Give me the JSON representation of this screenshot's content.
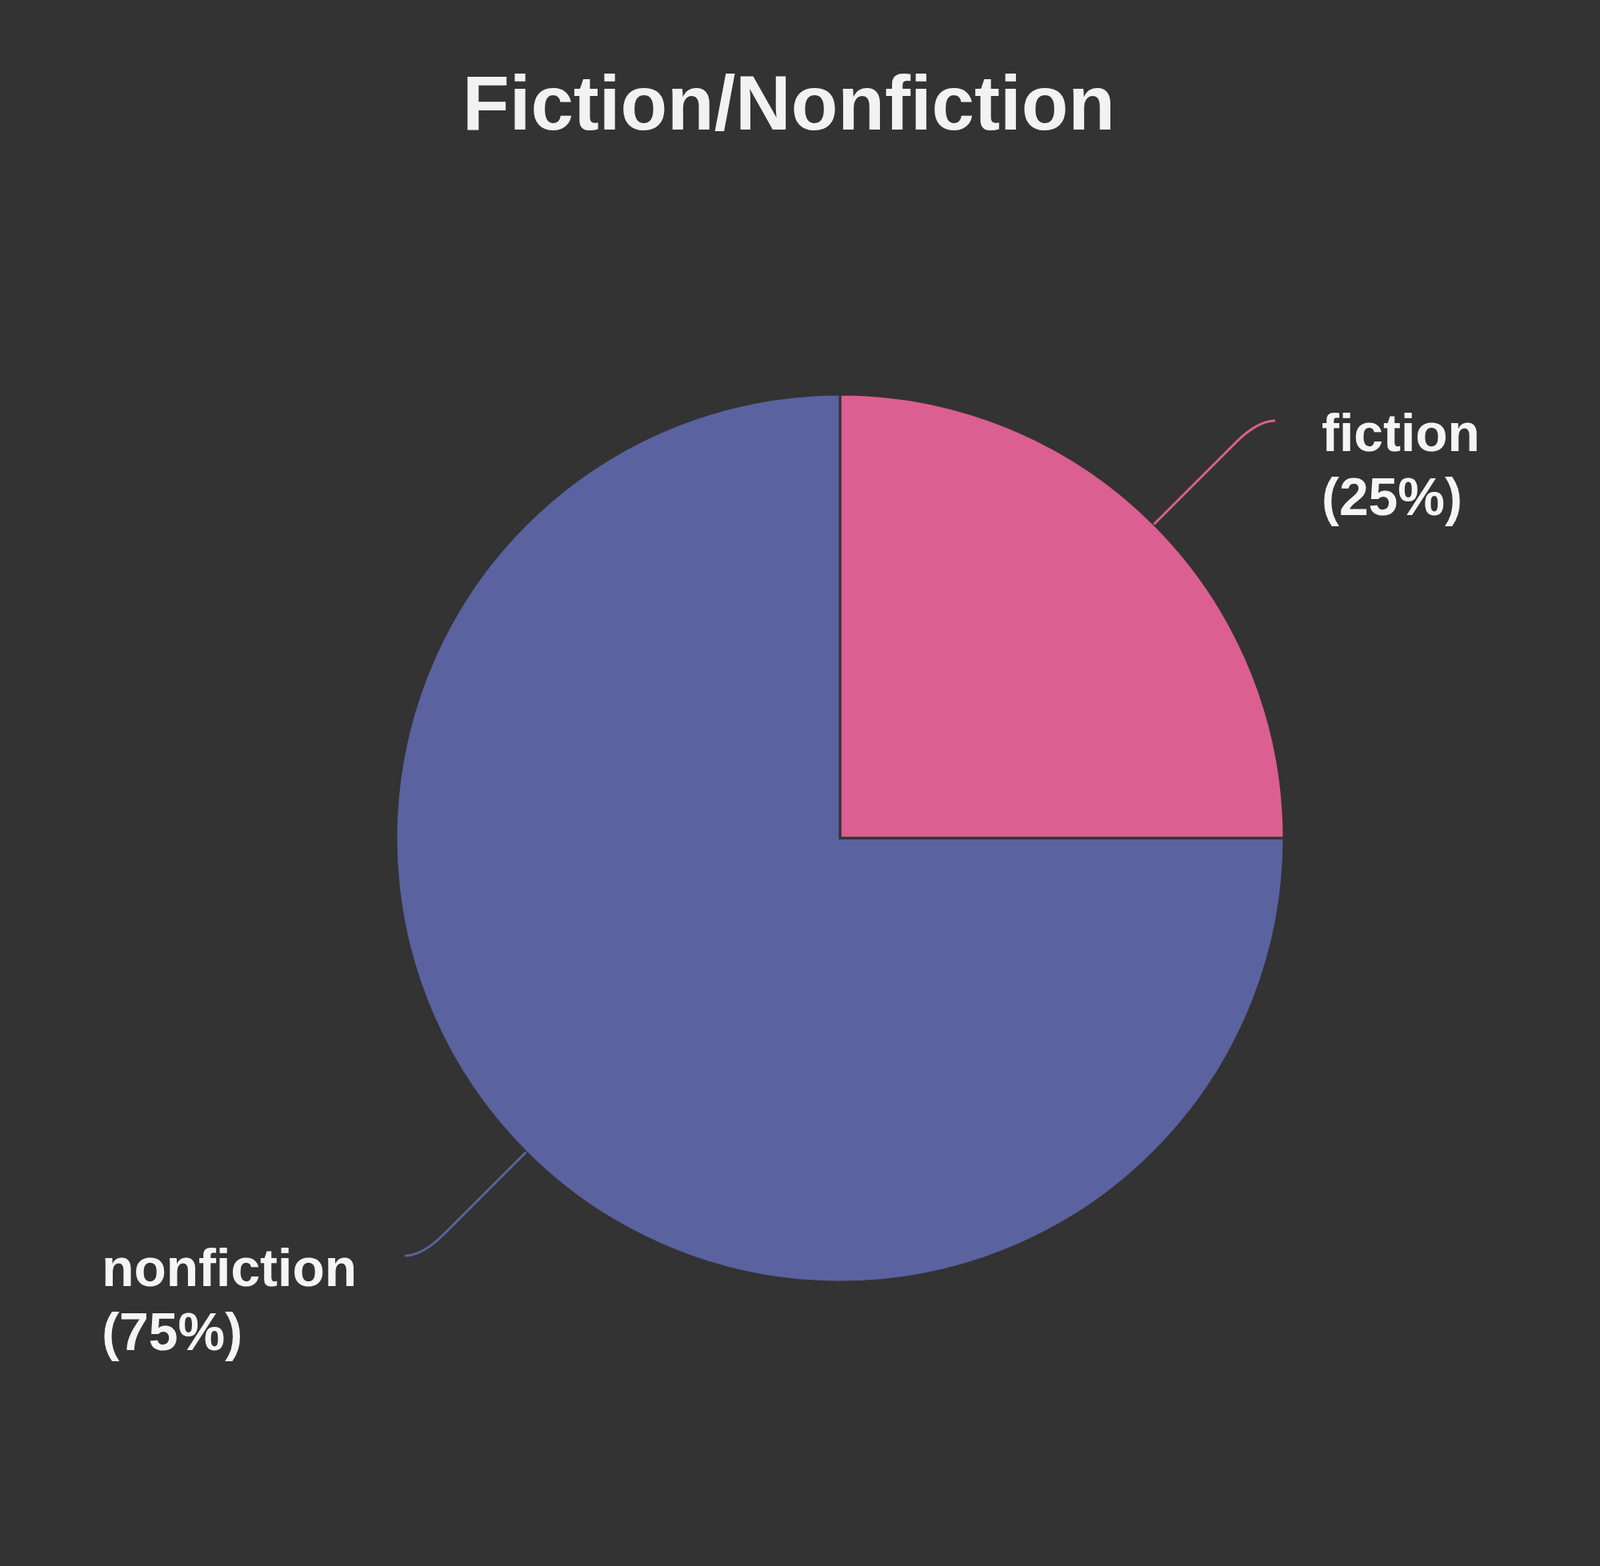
{
  "chart_data": {
    "type": "pie",
    "title": "Fiction/Nonfiction",
    "categories": [
      "fiction",
      "nonfiction"
    ],
    "values": [
      25,
      75
    ],
    "value_labels": [
      "(25%)",
      "(75%)"
    ],
    "colors": [
      "#dc5f91",
      "#5a62a0"
    ],
    "data_labels": true
  }
}
